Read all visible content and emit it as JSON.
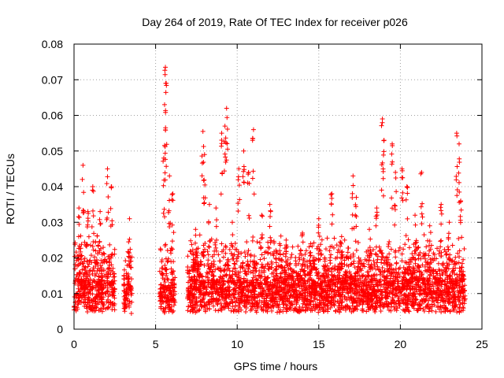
{
  "chart_data": {
    "type": "scatter",
    "title": "Day 264 of 2019, Rate Of TEC Index for receiver p026",
    "xlabel": "GPS time / hours",
    "ylabel": "ROTI / TECUs",
    "xlim": [
      0,
      25
    ],
    "ylim": [
      0,
      0.08
    ],
    "x_ticks": [
      0,
      5,
      10,
      15,
      20,
      25
    ],
    "y_ticks": [
      0,
      0.01,
      0.02,
      0.03,
      0.04,
      0.05,
      0.06,
      0.07,
      0.08
    ],
    "x_tick_labels": [
      "0",
      "5",
      "10",
      "15",
      "20",
      "25"
    ],
    "y_tick_labels": [
      "0",
      "0.01",
      "0.02",
      "0.03",
      "0.04",
      "0.05",
      "0.06",
      "0.07",
      "0.08"
    ],
    "grid": true,
    "marker": "+",
    "color": "#ff0000",
    "series": [
      {
        "name": "ROTI",
        "segments": [
          {
            "start": 0.0,
            "end": 2.5,
            "base": 0.009,
            "spread": 0.014
          },
          {
            "start": 3.05,
            "end": 3.55,
            "base": 0.008,
            "spread": 0.012
          },
          {
            "start": 5.25,
            "end": 6.2,
            "base": 0.008,
            "spread": 0.014
          },
          {
            "start": 6.95,
            "end": 24.0,
            "base": 0.009,
            "spread": 0.013
          }
        ],
        "peaks": [
          {
            "x": 0.3,
            "y": 0.034
          },
          {
            "x": 0.55,
            "y": 0.046
          },
          {
            "x": 0.85,
            "y": 0.033
          },
          {
            "x": 1.15,
            "y": 0.04
          },
          {
            "x": 1.6,
            "y": 0.033
          },
          {
            "x": 2.05,
            "y": 0.045
          },
          {
            "x": 2.3,
            "y": 0.04
          },
          {
            "x": 3.4,
            "y": 0.031
          },
          {
            "x": 5.6,
            "y": 0.0735
          },
          {
            "x": 5.65,
            "y": 0.069
          },
          {
            "x": 5.55,
            "y": 0.063
          },
          {
            "x": 5.5,
            "y": 0.048
          },
          {
            "x": 5.85,
            "y": 0.043
          },
          {
            "x": 6.05,
            "y": 0.038
          },
          {
            "x": 7.45,
            "y": 0.028
          },
          {
            "x": 7.9,
            "y": 0.0555
          },
          {
            "x": 8.0,
            "y": 0.049
          },
          {
            "x": 8.3,
            "y": 0.035
          },
          {
            "x": 8.7,
            "y": 0.034
          },
          {
            "x": 9.05,
            "y": 0.055
          },
          {
            "x": 9.25,
            "y": 0.057
          },
          {
            "x": 9.35,
            "y": 0.062
          },
          {
            "x": 9.7,
            "y": 0.03
          },
          {
            "x": 10.1,
            "y": 0.045
          },
          {
            "x": 10.4,
            "y": 0.05
          },
          {
            "x": 10.7,
            "y": 0.044
          },
          {
            "x": 11.0,
            "y": 0.056
          },
          {
            "x": 11.5,
            "y": 0.032
          },
          {
            "x": 12.0,
            "y": 0.035
          },
          {
            "x": 12.6,
            "y": 0.024
          },
          {
            "x": 13.0,
            "y": 0.025
          },
          {
            "x": 14.0,
            "y": 0.027
          },
          {
            "x": 14.5,
            "y": 0.024
          },
          {
            "x": 15.0,
            "y": 0.031
          },
          {
            "x": 15.8,
            "y": 0.038
          },
          {
            "x": 16.4,
            "y": 0.026
          },
          {
            "x": 17.1,
            "y": 0.043
          },
          {
            "x": 17.3,
            "y": 0.037
          },
          {
            "x": 18.1,
            "y": 0.028
          },
          {
            "x": 18.55,
            "y": 0.034
          },
          {
            "x": 18.9,
            "y": 0.059
          },
          {
            "x": 19.0,
            "y": 0.053
          },
          {
            "x": 19.5,
            "y": 0.052
          },
          {
            "x": 19.7,
            "y": 0.044
          },
          {
            "x": 20.1,
            "y": 0.045
          },
          {
            "x": 20.4,
            "y": 0.04
          },
          {
            "x": 20.9,
            "y": 0.032
          },
          {
            "x": 21.3,
            "y": 0.044
          },
          {
            "x": 21.8,
            "y": 0.029
          },
          {
            "x": 22.5,
            "y": 0.035
          },
          {
            "x": 23.0,
            "y": 0.03
          },
          {
            "x": 23.45,
            "y": 0.055
          },
          {
            "x": 23.6,
            "y": 0.052
          },
          {
            "x": 23.7,
            "y": 0.036
          }
        ]
      }
    ]
  }
}
